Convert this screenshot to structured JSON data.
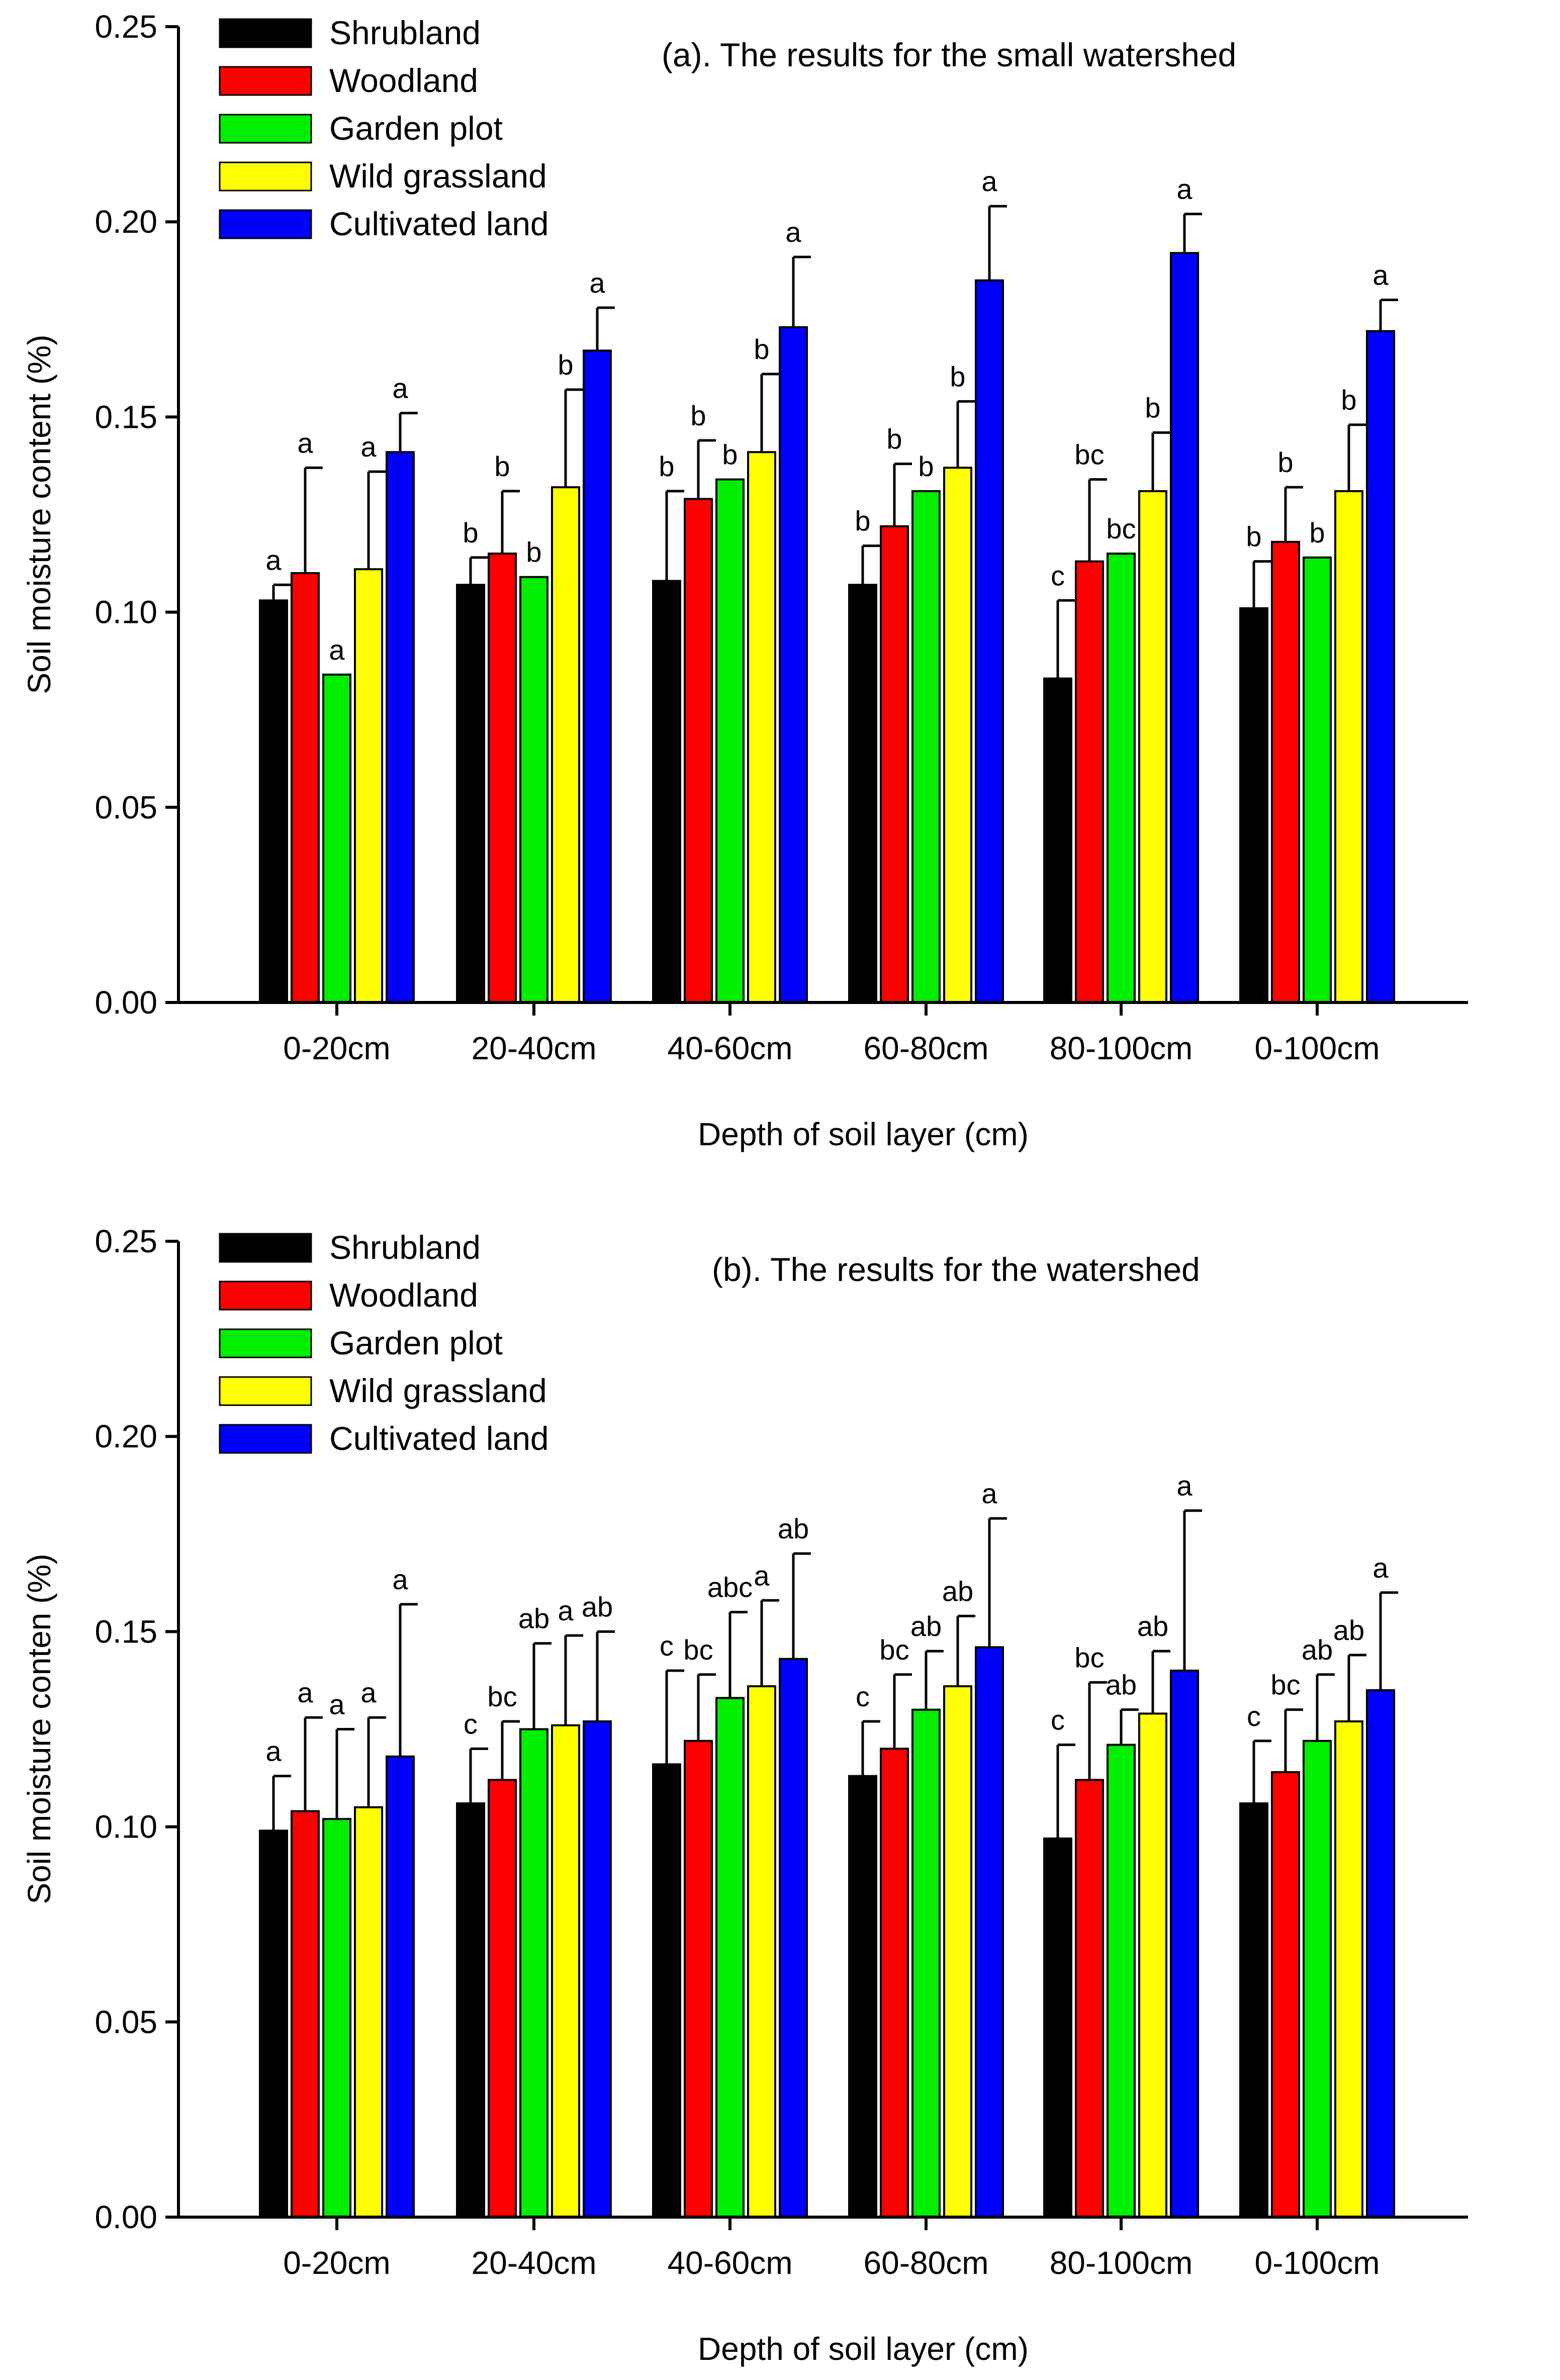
{
  "figure": {
    "colors": {
      "Shrubland": "#000000",
      "Woodland": "#ff0000",
      "Garden plot": "#00ee00",
      "Wild grassland": "#ffff00",
      "Cultivated land": "#0000ff"
    }
  },
  "chart_data": [
    {
      "type": "bar",
      "title": "(a). The results for the small watershed",
      "xlabel": "Depth of soil layer (cm)",
      "ylabel": "Soil moisture content (%)",
      "ylim": [
        0,
        0.25
      ],
      "yticks": [
        "0.00",
        "0.05",
        "0.10",
        "0.15",
        "0.20",
        "0.25"
      ],
      "categories": [
        "0-20cm",
        "20-40cm",
        "40-60cm",
        "60-80cm",
        "80-100cm",
        "0-100cm"
      ],
      "legend_position": "top-left",
      "series": [
        {
          "name": "Shrubland",
          "values": [
            0.103,
            0.107,
            0.108,
            0.107,
            0.083,
            0.101
          ],
          "errors": [
            0.004,
            0.007,
            0.023,
            0.01,
            0.02,
            0.012
          ],
          "labels": [
            "a",
            "b",
            "b",
            "b",
            "c",
            "b"
          ]
        },
        {
          "name": "Woodland",
          "values": [
            0.11,
            0.115,
            0.129,
            0.122,
            0.113,
            0.118
          ],
          "errors": [
            0.027,
            0.016,
            0.015,
            0.016,
            0.021,
            0.014
          ],
          "labels": [
            "a",
            "b",
            "b",
            "b",
            "bc",
            "b"
          ]
        },
        {
          "name": "Garden plot",
          "values": [
            0.084,
            0.109,
            0.134,
            0.131,
            0.115,
            0.114
          ],
          "errors": [
            0,
            0,
            0,
            0,
            0,
            0
          ],
          "labels": [
            "a",
            "b",
            "b",
            "b",
            "bc",
            "b"
          ]
        },
        {
          "name": "Wild grassland",
          "values": [
            0.111,
            0.132,
            0.141,
            0.137,
            0.131,
            0.131
          ],
          "errors": [
            0.025,
            0.025,
            0.02,
            0.017,
            0.015,
            0.017
          ],
          "labels": [
            "a",
            "b",
            "b",
            "b",
            "b",
            "b"
          ]
        },
        {
          "name": "Cultivated land",
          "values": [
            0.141,
            0.167,
            0.173,
            0.185,
            0.192,
            0.172
          ],
          "errors": [
            0.01,
            0.011,
            0.018,
            0.019,
            0.01,
            0.008
          ],
          "labels": [
            "a",
            "a",
            "a",
            "a",
            "a",
            "a"
          ]
        }
      ]
    },
    {
      "type": "bar",
      "title": "(b). The results for the watershed",
      "xlabel": "Depth of soil layer (cm)",
      "ylabel": "Soil moisture conten (%)",
      "ylim": [
        0,
        0.25
      ],
      "yticks": [
        "0.00",
        "0.05",
        "0.10",
        "0.15",
        "0.20",
        "0.25"
      ],
      "categories": [
        "0-20cm",
        "20-40cm",
        "40-60cm",
        "60-80cm",
        "80-100cm",
        "0-100cm"
      ],
      "legend_position": "top-left",
      "series": [
        {
          "name": "Shrubland",
          "values": [
            0.099,
            0.106,
            0.116,
            0.113,
            0.097,
            0.106
          ],
          "errors": [
            0.014,
            0.014,
            0.024,
            0.014,
            0.024,
            0.016
          ],
          "labels": [
            "a",
            "c",
            "c",
            "c",
            "c",
            "c"
          ]
        },
        {
          "name": "Woodland",
          "values": [
            0.104,
            0.112,
            0.122,
            0.12,
            0.112,
            0.114
          ],
          "errors": [
            0.024,
            0.015,
            0.017,
            0.019,
            0.025,
            0.016
          ],
          "labels": [
            "a",
            "bc",
            "bc",
            "bc",
            "bc",
            "bc"
          ]
        },
        {
          "name": "Garden plot",
          "values": [
            0.102,
            0.125,
            0.133,
            0.13,
            0.121,
            0.122
          ],
          "errors": [
            0.023,
            0.022,
            0.022,
            0.015,
            0.009,
            0.017
          ],
          "labels": [
            "a",
            "ab",
            "abc",
            "ab",
            "ab",
            "ab"
          ]
        },
        {
          "name": "Wild grassland",
          "values": [
            0.105,
            0.126,
            0.136,
            0.136,
            0.129,
            0.127
          ],
          "errors": [
            0.023,
            0.023,
            0.022,
            0.018,
            0.016,
            0.017
          ],
          "labels": [
            "a",
            "a",
            "a",
            "ab",
            "ab",
            "ab"
          ]
        },
        {
          "name": "Cultivated land",
          "values": [
            0.118,
            0.127,
            0.143,
            0.146,
            0.14,
            0.135
          ],
          "errors": [
            0.039,
            0.023,
            0.027,
            0.033,
            0.041,
            0.025
          ],
          "labels": [
            "a",
            "ab",
            "ab",
            "a",
            "a",
            "a"
          ]
        }
      ]
    }
  ]
}
